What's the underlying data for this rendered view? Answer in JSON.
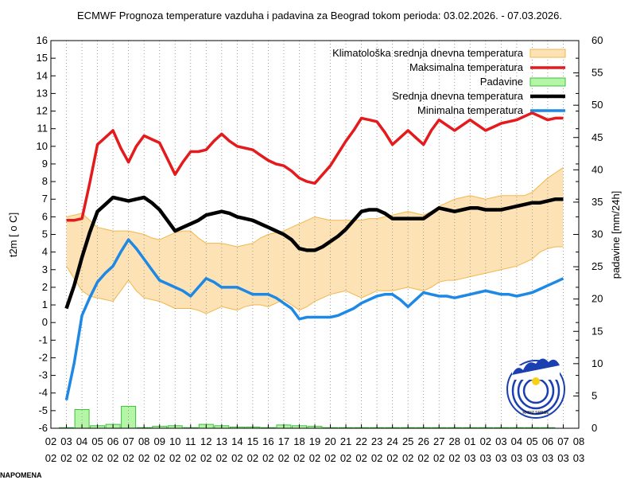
{
  "chart_data": {
    "type": "line",
    "title": "ECMWF Prognoza temperature vazduha i padavina za Beograd tokom perioda: 03.02.2026. - 07.03.2026.",
    "ylabel": "t2m [ o C]",
    "y2label": "padavine [mm/24h]",
    "ylim": [
      -6,
      16
    ],
    "y2lim": [
      0,
      60
    ],
    "y_ticks": [
      "-6",
      "-5",
      "-4",
      "-3",
      "-2",
      "-1",
      "0",
      "1",
      "2",
      "3",
      "4",
      "5",
      "6",
      "7",
      "8",
      "9",
      "10",
      "11",
      "12",
      "13",
      "14",
      "15",
      "16"
    ],
    "y2_ticks": [
      "0",
      "5",
      "10",
      "15",
      "20",
      "25",
      "30",
      "35",
      "40",
      "45",
      "50",
      "55",
      "60"
    ],
    "x_tick_days": [
      "02",
      "03",
      "04",
      "05",
      "06",
      "07",
      "08",
      "09",
      "10",
      "11",
      "12",
      "13",
      "14",
      "15",
      "16",
      "17",
      "18",
      "19",
      "20",
      "21",
      "22",
      "23",
      "24",
      "25",
      "26",
      "27",
      "28",
      "01",
      "02",
      "03",
      "04",
      "05",
      "06",
      "07",
      "08"
    ],
    "x_tick_months": [
      "02",
      "02",
      "02",
      "02",
      "02",
      "02",
      "02",
      "02",
      "02",
      "02",
      "02",
      "02",
      "02",
      "02",
      "02",
      "02",
      "02",
      "02",
      "02",
      "02",
      "02",
      "02",
      "02",
      "02",
      "02",
      "02",
      "02",
      "03",
      "03",
      "03",
      "03",
      "03",
      "03",
      "03",
      "03"
    ],
    "grid": "vertical dotted",
    "legend_position": "top-right",
    "legend": {
      "climate": "Klimatološka srednja dnevna temperatura",
      "max": "Maksimalna temperatura",
      "precip": "Padavine",
      "mean": "Srednja dnevna temperatura",
      "min": "Minimalna temperatura"
    },
    "colors": {
      "max": "#e41a1c",
      "mean": "#000000",
      "min": "#1e88e5",
      "band_fill": "#fde2b6",
      "band_edge": "#f3b64a",
      "precip_fill": "#b4f5a6",
      "precip_edge": "#3fbf3f"
    },
    "x": [
      3,
      3.5,
      4,
      4.5,
      5,
      5.5,
      6,
      6.5,
      7,
      7.5,
      8,
      8.5,
      9,
      9.5,
      10,
      10.5,
      11,
      11.5,
      12,
      12.5,
      13,
      13.5,
      14,
      14.5,
      15,
      15.5,
      16,
      16.5,
      17,
      17.5,
      18,
      18.5,
      19,
      19.5,
      20,
      20.5,
      21,
      21.5,
      22,
      22.5,
      23,
      23.5,
      24,
      24.5,
      25,
      25.5,
      26,
      26.5,
      27,
      27.5,
      28,
      28.5,
      29,
      29.5,
      30,
      30.5,
      31,
      31.5,
      32,
      32.5,
      33,
      33.5,
      34,
      34.5,
      35
    ],
    "series": {
      "max": [
        5.8,
        5.8,
        5.9,
        7.9,
        10.1,
        10.5,
        10.9,
        9.9,
        9.1,
        10.0,
        10.6,
        10.4,
        10.2,
        9.3,
        8.4,
        9.1,
        9.7,
        9.7,
        9.8,
        10.3,
        10.7,
        10.3,
        10.0,
        9.9,
        9.8,
        9.5,
        9.2,
        9.0,
        8.9,
        8.6,
        8.2,
        8.0,
        7.9,
        8.4,
        8.9,
        9.6,
        10.3,
        10.9,
        11.6,
        11.5,
        11.4,
        10.8,
        10.1,
        10.5,
        10.9,
        10.5,
        10.1,
        10.9,
        11.5,
        11.2,
        10.9,
        11.2,
        11.5,
        11.2,
        10.9,
        11.1,
        11.3,
        11.4,
        11.5,
        11.7,
        11.9,
        11.7,
        11.5,
        11.6,
        11.6
      ],
      "mean": [
        0.8,
        2.1,
        3.7,
        5.1,
        6.3,
        6.7,
        7.1,
        7.0,
        6.9,
        7.0,
        7.1,
        6.8,
        6.4,
        5.8,
        5.2,
        5.4,
        5.6,
        5.8,
        6.1,
        6.2,
        6.3,
        6.2,
        6.0,
        5.9,
        5.8,
        5.6,
        5.4,
        5.2,
        5.0,
        4.7,
        4.2,
        4.1,
        4.1,
        4.3,
        4.6,
        4.9,
        5.3,
        5.8,
        6.3,
        6.4,
        6.4,
        6.2,
        5.9,
        5.9,
        5.9,
        5.9,
        5.9,
        6.2,
        6.5,
        6.4,
        6.3,
        6.4,
        6.5,
        6.5,
        6.4,
        6.4,
        6.4,
        6.5,
        6.6,
        6.7,
        6.8,
        6.8,
        6.9,
        7.0,
        7.0
      ],
      "min": [
        -4.4,
        -2.3,
        0.4,
        1.4,
        2.3,
        2.8,
        3.2,
        4.0,
        4.7,
        4.2,
        3.6,
        3.0,
        2.4,
        2.2,
        2.0,
        1.8,
        1.5,
        2.0,
        2.5,
        2.3,
        2.0,
        2.0,
        2.0,
        1.8,
        1.6,
        1.6,
        1.6,
        1.4,
        1.1,
        0.8,
        0.2,
        0.3,
        0.3,
        0.3,
        0.3,
        0.4,
        0.6,
        0.8,
        1.1,
        1.3,
        1.5,
        1.6,
        1.6,
        1.3,
        0.9,
        1.3,
        1.7,
        1.6,
        1.5,
        1.5,
        1.4,
        1.5,
        1.6,
        1.7,
        1.8,
        1.7,
        1.6,
        1.6,
        1.5,
        1.6,
        1.7,
        1.9,
        2.1,
        2.3,
        2.5
      ],
      "climate_upper": [
        6.0,
        6.1,
        6.2,
        5.8,
        5.4,
        5.3,
        5.2,
        5.2,
        5.2,
        5.1,
        5.0,
        4.8,
        4.7,
        4.9,
        5.1,
        5.2,
        5.2,
        4.8,
        4.5,
        4.5,
        4.5,
        4.4,
        4.3,
        4.4,
        4.5,
        4.8,
        5.0,
        5.1,
        5.2,
        5.4,
        5.6,
        5.8,
        6.0,
        5.9,
        5.8,
        5.8,
        5.8,
        5.8,
        5.8,
        5.9,
        5.9,
        6.0,
        6.1,
        6.2,
        6.3,
        6.2,
        6.1,
        6.3,
        6.6,
        6.8,
        7.0,
        7.1,
        7.2,
        7.1,
        7.0,
        7.1,
        7.2,
        7.2,
        7.2,
        7.2,
        7.4,
        7.8,
        8.2,
        8.5,
        8.8
      ],
      "climate_lower": [
        3.2,
        2.5,
        1.8,
        1.5,
        1.4,
        1.3,
        1.2,
        1.8,
        2.4,
        1.8,
        1.4,
        1.3,
        1.2,
        1.0,
        0.8,
        0.8,
        0.8,
        0.7,
        0.5,
        0.7,
        0.9,
        0.8,
        0.7,
        0.9,
        1.0,
        1.0,
        0.9,
        1.1,
        1.3,
        1.0,
        0.7,
        0.9,
        1.2,
        1.4,
        1.6,
        1.7,
        1.8,
        1.6,
        1.4,
        1.6,
        1.8,
        1.8,
        1.8,
        1.9,
        2.0,
        1.9,
        1.8,
        2.0,
        2.3,
        2.4,
        2.4,
        2.5,
        2.6,
        2.7,
        2.8,
        2.9,
        3.0,
        3.1,
        3.2,
        3.4,
        3.6,
        4.0,
        4.2,
        4.3,
        4.3
      ]
    },
    "precip": {
      "x": [
        3,
        4,
        5,
        6,
        7,
        8,
        9,
        10,
        11,
        12,
        13,
        14,
        15,
        16,
        17,
        18,
        19,
        20,
        21,
        22,
        23,
        24,
        25,
        26,
        27,
        28,
        29,
        30,
        31,
        32,
        33,
        34
      ],
      "values": [
        0.1,
        2.9,
        0.4,
        0.6,
        3.4,
        0.1,
        0.3,
        0.4,
        0.1,
        0.6,
        0.4,
        0.2,
        0.2,
        0.1,
        0.5,
        0.4,
        0.3,
        0.1,
        0.1,
        0.1,
        0.1,
        0.1,
        0.1,
        0.1,
        0.1,
        0.1,
        0.1,
        0.1,
        0.1,
        0.1,
        0.1,
        0.1
      ]
    }
  },
  "logo": {
    "name": "rhmz-logo-icon",
    "text": "RHMZ SRBIJE"
  },
  "footnote": "NAPOMENA"
}
